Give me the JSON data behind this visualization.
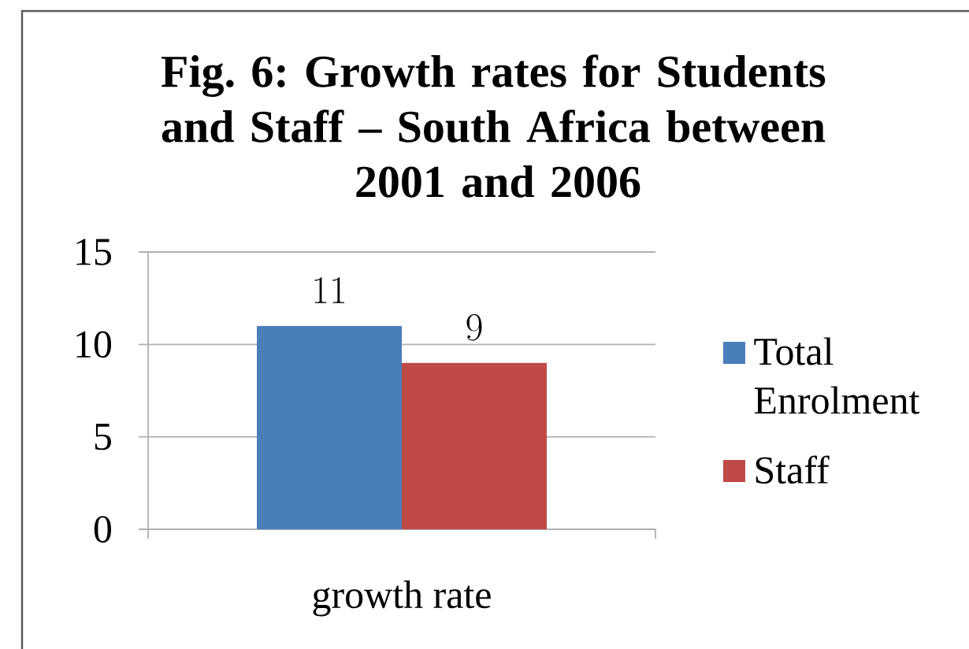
{
  "chart_data": {
    "type": "bar",
    "title": "Fig. 6: Growth rates for Students and Staff – South Africa between 2001 and 2006",
    "categories": [
      "growth rate"
    ],
    "series": [
      {
        "name": "Total Enrolment",
        "color": "#4a7ebb",
        "values": [
          11
        ]
      },
      {
        "name": "Staff",
        "color": "#be4b48",
        "values": [
          9
        ]
      }
    ],
    "ylim": [
      0,
      15
    ],
    "yticks": [
      0,
      5,
      10,
      15
    ],
    "grid": "y",
    "legend": "right",
    "data_labels": true
  }
}
